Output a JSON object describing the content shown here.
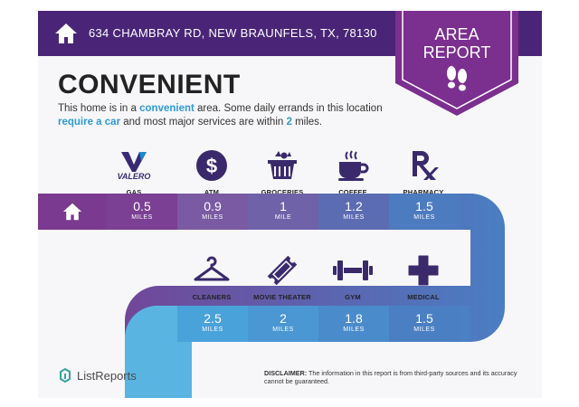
{
  "header": {
    "address": "634 CHAMBRAY RD, NEW BRAUNFELS, TX, 78130"
  },
  "badge": {
    "line1": "AREA",
    "line2": "REPORT"
  },
  "title": "CONVENIENT",
  "description": {
    "p1": "This home is in a ",
    "h1": "convenient",
    "p2": " area. Some daily errands in this location ",
    "h2": "require a car",
    "p3": " and most major services are within ",
    "h3": "2",
    "p4": " miles."
  },
  "logos": {
    "valero": "VALERO"
  },
  "row1": [
    {
      "label": "GAS",
      "value": "0.5",
      "unit": "MILES",
      "icon": "valero-logo"
    },
    {
      "label": "ATM",
      "value": "0.9",
      "unit": "MILES",
      "icon": "dollar-icon"
    },
    {
      "label": "GROCERIES",
      "value": "1",
      "unit": "MILE",
      "icon": "basket-icon"
    },
    {
      "label": "COFFEE",
      "value": "1.2",
      "unit": "MILES",
      "icon": "coffee-cup-icon"
    },
    {
      "label": "PHARMACY",
      "value": "1.5",
      "unit": "MILES",
      "icon": "rx-icon"
    }
  ],
  "row2": [
    {
      "label": "CLEANERS",
      "value": "2.5",
      "unit": "MILES",
      "icon": "hanger-icon"
    },
    {
      "label": "MOVIE THEATER",
      "value": "2",
      "unit": "MILES",
      "icon": "ticket-icon"
    },
    {
      "label": "GYM",
      "value": "1.8",
      "unit": "MILES",
      "icon": "dumbbell-icon"
    },
    {
      "label": "MEDICAL",
      "value": "1.5",
      "unit": "MILES",
      "icon": "medical-cross-icon"
    }
  ],
  "footer": {
    "logo": "ListReports",
    "disclaimer_label": "DISCLAIMER:",
    "disclaimer_text": " The information in this report is from third-party sources and its accuracy cannot be guaranteed."
  },
  "colors": {
    "header": "#4a2577",
    "badge": "#7b2f8f",
    "highlight": "#2e9ad6",
    "row1_cells": [
      "#7b3f93",
      "#7a5aa3",
      "#6f62a8",
      "#5c6cb2",
      "#4d7bc0"
    ],
    "row2_cells": [
      "#4aa2da",
      "#4a97d3",
      "#4a8bcb",
      "#4b7fc4"
    ]
  }
}
